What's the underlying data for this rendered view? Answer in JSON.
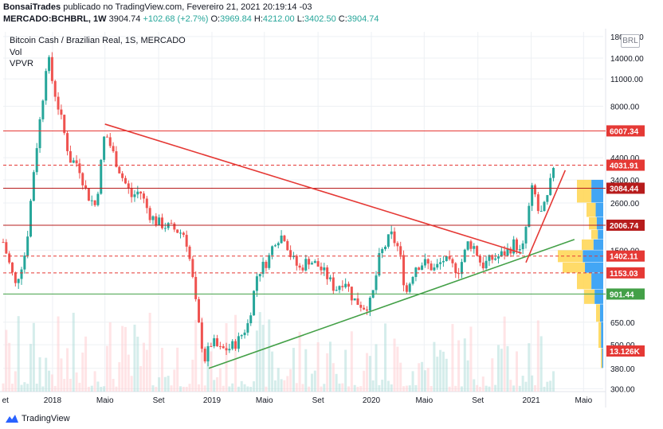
{
  "header": {
    "author": "BonsaiTrades",
    "published": "publicado no TradingView.com, Fevereiro 21, 2021 20:19:14 -03",
    "symbol": "MERCADO:BCHBRL, 1W",
    "last": "3904.74",
    "change": "+102.68 (+2.7%)",
    "o_label": "O:",
    "o_value": "3969.84",
    "h_label": "H:",
    "h_value": "4212.00",
    "l_label": "L:",
    "l_value": "3402.50",
    "c_label": "C:",
    "c_value": "3904.74"
  },
  "chart_data": {
    "type": "candlestick",
    "title": "Bitcoin Cash / Brazilian Real, 1S, MERCADO",
    "indicators": [
      "Vol",
      "VPVR"
    ],
    "currency_badge": "BRL",
    "y_scale": "log",
    "y_ticks": [
      18000,
      14000,
      11000,
      8000,
      4400,
      3400,
      2600,
      1500,
      650,
      500,
      380,
      300
    ],
    "y_tick_labels": [
      "18000.00",
      "14000.00",
      "11000.00",
      "8000.00",
      "4400.00",
      "3400.00",
      "2600.00",
      "1500.00",
      "650.00",
      "500.00",
      "380.00",
      "300.00"
    ],
    "ylim": [
      290,
      19000
    ],
    "x_ticks": [
      {
        "label": "et",
        "date": "2017-09-15"
      },
      {
        "label": "2018",
        "date": "2018-01-01"
      },
      {
        "label": "Maio",
        "date": "2018-05-01"
      },
      {
        "label": "Set",
        "date": "2018-09-01"
      },
      {
        "label": "2019",
        "date": "2019-01-01"
      },
      {
        "label": "Maio",
        "date": "2019-05-01"
      },
      {
        "label": "Set",
        "date": "2019-09-01"
      },
      {
        "label": "2020",
        "date": "2020-01-01"
      },
      {
        "label": "Maio",
        "date": "2020-05-01"
      },
      {
        "label": "Set",
        "date": "2020-09-01"
      },
      {
        "label": "2021",
        "date": "2021-01-01"
      },
      {
        "label": "Maio",
        "date": "2021-05-01"
      }
    ],
    "xlim": [
      "2017-09-10",
      "2021-06-15"
    ],
    "price_path": [
      [
        "2017-09-10",
        1650
      ],
      [
        "2017-10-08",
        1000
      ],
      [
        "2017-11-01",
        1500
      ],
      [
        "2017-11-20",
        4000
      ],
      [
        "2017-12-10",
        9000
      ],
      [
        "2017-12-20",
        15000
      ],
      [
        "2018-01-01",
        10500
      ],
      [
        "2018-01-20",
        7000
      ],
      [
        "2018-02-10",
        4300
      ],
      [
        "2018-03-01",
        4100
      ],
      [
        "2018-03-20",
        2900
      ],
      [
        "2018-04-10",
        2500
      ],
      [
        "2018-05-01",
        6000
      ],
      [
        "2018-05-20",
        4600
      ],
      [
        "2018-06-10",
        3500
      ],
      [
        "2018-07-01",
        2800
      ],
      [
        "2018-07-20",
        3000
      ],
      [
        "2018-08-10",
        2300
      ],
      [
        "2018-08-25",
        2100
      ],
      [
        "2018-09-15",
        2000
      ],
      [
        "2018-10-10",
        1900
      ],
      [
        "2018-11-01",
        1800
      ],
      [
        "2018-11-15",
        1200
      ],
      [
        "2018-11-30",
        660
      ],
      [
        "2018-12-15",
        420
      ],
      [
        "2019-01-01",
        520
      ],
      [
        "2019-01-20",
        470
      ],
      [
        "2019-02-10",
        480
      ],
      [
        "2019-03-01",
        520
      ],
      [
        "2019-03-25",
        640
      ],
      [
        "2019-04-15",
        1150
      ],
      [
        "2019-05-10",
        1350
      ],
      [
        "2019-05-25",
        1700
      ],
      [
        "2019-06-15",
        1800
      ],
      [
        "2019-07-01",
        1400
      ],
      [
        "2019-07-20",
        1200
      ],
      [
        "2019-08-10",
        1350
      ],
      [
        "2019-09-01",
        1250
      ],
      [
        "2019-09-20",
        1120
      ],
      [
        "2019-10-10",
        950
      ],
      [
        "2019-11-01",
        1080
      ],
      [
        "2019-11-20",
        850
      ],
      [
        "2019-12-15",
        780
      ],
      [
        "2020-01-01",
        820
      ],
      [
        "2020-01-20",
        1400
      ],
      [
        "2020-02-15",
        1800
      ],
      [
        "2020-03-05",
        1500
      ],
      [
        "2020-03-20",
        900
      ],
      [
        "2020-04-10",
        1250
      ],
      [
        "2020-05-01",
        1300
      ],
      [
        "2020-05-25",
        1200
      ],
      [
        "2020-06-15",
        1350
      ],
      [
        "2020-07-01",
        1250
      ],
      [
        "2020-07-20",
        1200
      ],
      [
        "2020-08-10",
        1650
      ],
      [
        "2020-08-25",
        1550
      ],
      [
        "2020-09-10",
        1250
      ],
      [
        "2020-10-01",
        1350
      ],
      [
        "2020-10-20",
        1400
      ],
      [
        "2020-11-10",
        1500
      ],
      [
        "2020-11-25",
        1650
      ],
      [
        "2020-12-10",
        1400
      ],
      [
        "2020-12-25",
        2300
      ],
      [
        "2021-01-05",
        3200
      ],
      [
        "2021-01-20",
        2200
      ],
      [
        "2021-02-05",
        2600
      ],
      [
        "2021-02-21",
        3904.74
      ]
    ],
    "volume_scale_max": 100,
    "horizontal_levels": [
      {
        "value": 6007.34,
        "label": "6007.34",
        "style": "solid",
        "color": "#e53935"
      },
      {
        "value": 4031.91,
        "label": "4031.91",
        "style": "dashed",
        "color": "#e53935"
      },
      {
        "value": 3084.44,
        "label": "3084.44",
        "style": "solid",
        "color": "#b71c1c"
      },
      {
        "value": 2006.74,
        "label": "2006.74",
        "style": "solid",
        "color": "#b71c1c"
      },
      {
        "value": 1402.11,
        "label": "1402.11",
        "style": "dashed",
        "color": "#e53935"
      },
      {
        "value": 1153.03,
        "label": "1153.03",
        "style": "dashed",
        "color": "#e53935"
      },
      {
        "value": 901.44,
        "label": "901.44",
        "style": "solid",
        "color": "#43a047"
      }
    ],
    "volume_label": "13.126K",
    "trendlines": [
      {
        "from": [
          "2018-05-01",
          6500
        ],
        "to": [
          "2020-12-10",
          1450
        ],
        "color": "#e53935"
      },
      {
        "from": [
          "2018-12-25",
          380
        ],
        "to": [
          "2021-04-10",
          1700
        ],
        "color": "#43a047"
      },
      {
        "from": [
          "2020-12-20",
          1300
        ],
        "to": [
          "2021-03-20",
          3800
        ],
        "color": "#e53935"
      }
    ],
    "colors": {
      "up": "#26a69a",
      "down": "#ef5350",
      "grid": "#edf0f4",
      "vp_blue": "#2196f3",
      "vp_yellow": "#ffd54f"
    }
  },
  "footer": {
    "brand": "TradingView"
  }
}
